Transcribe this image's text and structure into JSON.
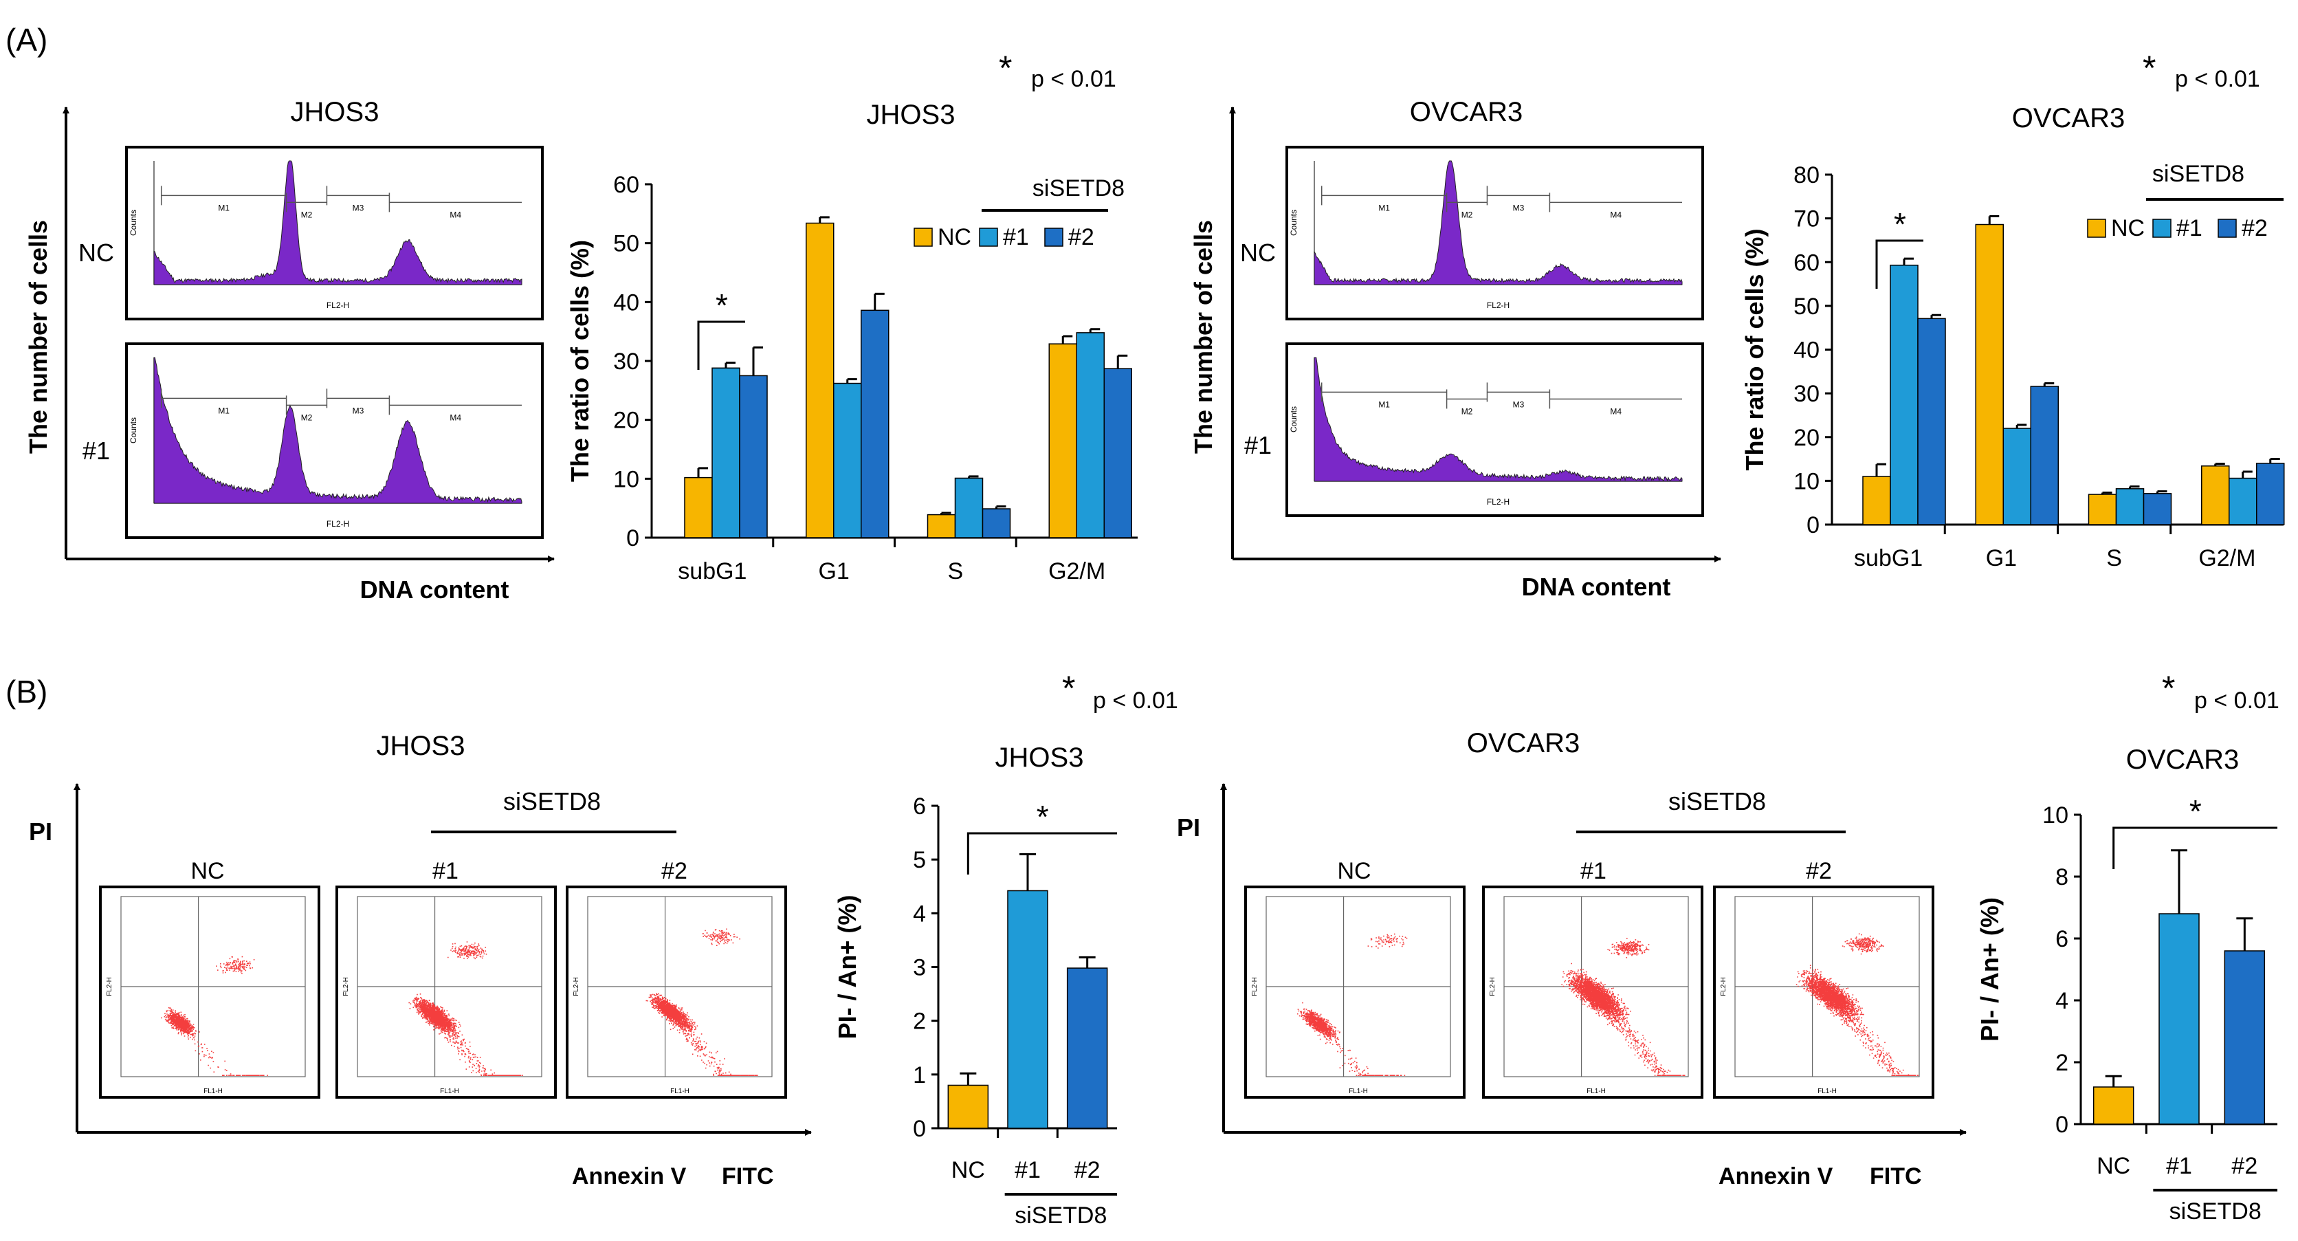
{
  "panel_labels": {
    "a": "(A)",
    "b": "(B)"
  },
  "colors": {
    "nc": "#F7B500",
    "si1": "#1F9BD7",
    "si2": "#1E6FC5",
    "hist": "#7A28C8",
    "dots": "#F43E3E"
  },
  "common": {
    "y_axis_cells": "The number of cells",
    "x_axis_dna": "DNA content",
    "y_axis_pi": "PI",
    "x_axis_annexin": "Annexin V",
    "x_axis_fitc": "FITC",
    "pval_star": "*",
    "pval_text": "p < 0.01",
    "sig_star": "*",
    "row_nc": "NC",
    "row_1": "#1",
    "group_label": "siSETD8",
    "gate_labels": [
      "M1",
      "M2",
      "M3",
      "M4"
    ],
    "fl2h": "FL2-H",
    "counts": "Counts",
    "fl1h": "FL1-H",
    "fl2h_y": "FL2-H"
  },
  "histograms": {
    "jhos3": {
      "title": "JHOS3"
    },
    "ovcar3": {
      "title": "OVCAR3"
    }
  },
  "scatter": {
    "jhos3": {
      "title": "JHOS3",
      "nc": "NC",
      "s1": "#1",
      "s2": "#2"
    },
    "ovcar3": {
      "title": "OVCAR3",
      "nc": "NC",
      "s1": "#1",
      "s2": "#2"
    }
  },
  "chart_data": [
    {
      "id": "cc-jhos3",
      "type": "bar",
      "title": "JHOS3",
      "ylabel": "The ratio of  cells (%)",
      "ylim": [
        0,
        60
      ],
      "ticks": [
        0,
        10,
        20,
        30,
        40,
        50,
        60
      ],
      "categories": [
        "subG1",
        "G1",
        "S",
        "G2/M"
      ],
      "legend": [
        "NC",
        "#1",
        "#2"
      ],
      "legend_group": "siSETD8",
      "series": [
        {
          "name": "NC",
          "values": [
            10.2,
            53.4,
            3.9,
            32.9
          ],
          "errors": [
            1.6,
            1.0,
            0.3,
            1.3
          ]
        },
        {
          "name": "#1",
          "values": [
            28.8,
            26.2,
            10.1,
            34.8
          ],
          "errors": [
            0.9,
            0.7,
            0.3,
            0.6
          ]
        },
        {
          "name": "#2",
          "values": [
            27.5,
            38.6,
            4.9,
            28.7
          ],
          "errors": [
            4.8,
            2.8,
            0.4,
            2.2
          ]
        }
      ]
    },
    {
      "id": "cc-ovcar3",
      "type": "bar",
      "title": "OVCAR3",
      "ylabel": "The ratio of  cells (%)",
      "ylim": [
        0,
        80
      ],
      "ticks": [
        0,
        10,
        20,
        30,
        40,
        50,
        60,
        70,
        80
      ],
      "categories": [
        "subG1",
        "G1",
        "S",
        "G2/M"
      ],
      "legend": [
        "NC",
        "#1",
        "#2"
      ],
      "legend_group": "siSETD8",
      "series": [
        {
          "name": "NC",
          "values": [
            11.0,
            68.6,
            6.9,
            13.4
          ],
          "errors": [
            2.8,
            1.9,
            0.4,
            0.5
          ]
        },
        {
          "name": "#1",
          "values": [
            59.3,
            22.0,
            8.2,
            10.6
          ],
          "errors": [
            1.5,
            0.8,
            0.5,
            1.5
          ]
        },
        {
          "name": "#2",
          "values": [
            47.1,
            31.6,
            7.1,
            14.0
          ],
          "errors": [
            0.8,
            0.7,
            0.5,
            1.0
          ]
        }
      ]
    },
    {
      "id": "ap-jhos3",
      "type": "bar",
      "title": "JHOS3",
      "ylabel": "PI- / An+ (%)",
      "ylim": [
        0,
        6
      ],
      "ticks": [
        0,
        1,
        2,
        3,
        4,
        5,
        6
      ],
      "categories": [
        "NC",
        "#1",
        "#2"
      ],
      "group_label": "siSETD8",
      "values": [
        0.8,
        4.42,
        2.98
      ],
      "errors": [
        0.22,
        0.68,
        0.2
      ]
    },
    {
      "id": "ap-ovcar3",
      "type": "bar",
      "title": "OVCAR3",
      "ylabel": "PI- / An+ (%)",
      "ylim": [
        0,
        10
      ],
      "ticks": [
        0,
        2,
        4,
        6,
        8,
        10
      ],
      "categories": [
        "NC",
        "#1",
        "#2"
      ],
      "group_label": "siSETD8",
      "values": [
        1.2,
        6.8,
        5.6
      ],
      "errors": [
        0.35,
        2.05,
        1.05
      ]
    }
  ]
}
